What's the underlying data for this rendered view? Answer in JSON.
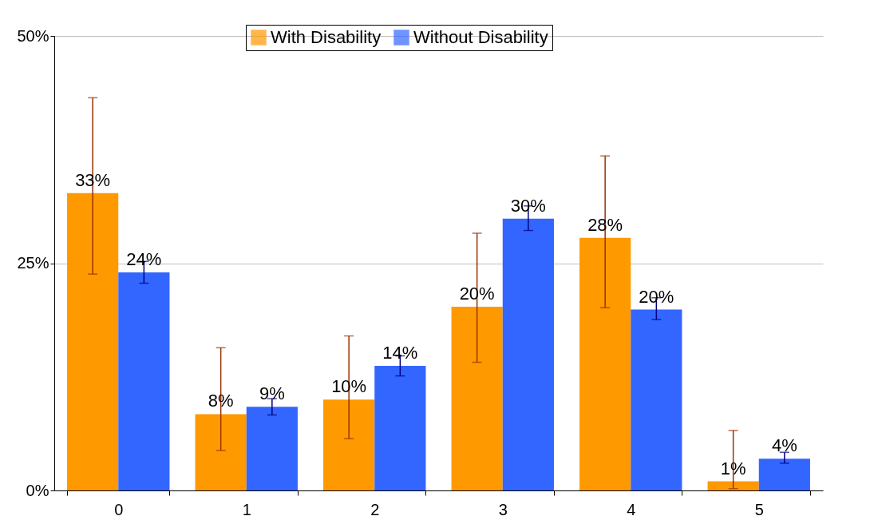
{
  "chart_data": {
    "type": "bar",
    "categories": [
      "0",
      "1",
      "2",
      "3",
      "4",
      "5"
    ],
    "series": [
      {
        "name": "With Disability",
        "color": "#ff9900",
        "values": [
          32.7,
          8.4,
          10.0,
          20.2,
          27.8,
          1.0
        ],
        "value_labels": [
          "33%",
          "8%",
          "10%",
          "20%",
          "28%",
          "1%"
        ],
        "errors": [
          [
            23.8,
            43.2
          ],
          [
            4.4,
            15.7
          ],
          [
            5.7,
            17.0
          ],
          [
            14.1,
            28.3
          ],
          [
            20.1,
            36.8
          ],
          [
            0.2,
            6.6
          ]
        ]
      },
      {
        "name": "Without Disability",
        "color": "#3366ff",
        "values": [
          24.0,
          9.2,
          13.7,
          29.9,
          19.9,
          3.5
        ],
        "value_labels": [
          "24%",
          "9%",
          "14%",
          "30%",
          "20%",
          "4%"
        ],
        "errors": [
          [
            22.8,
            25.2
          ],
          [
            8.3,
            10.1
          ],
          [
            12.6,
            14.8
          ],
          [
            28.6,
            31.3
          ],
          [
            18.8,
            21.2
          ],
          [
            3.0,
            4.2
          ]
        ]
      }
    ],
    "ylim": [
      0,
      50
    ],
    "yticks": [
      {
        "value": 0,
        "label": "0%"
      },
      {
        "value": 25,
        "label": "25%"
      },
      {
        "value": 50,
        "label": "50%"
      }
    ],
    "grid": "y",
    "legend": "top"
  }
}
